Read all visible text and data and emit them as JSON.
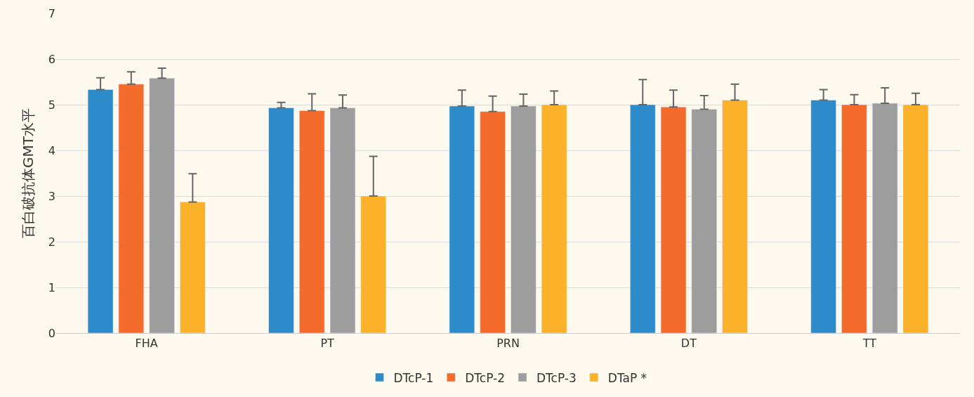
{
  "chart_data": {
    "type": "bar",
    "ylabel": "百白破抗体GMT水平",
    "categories": [
      "FHA",
      "PT",
      "PRN",
      "DT",
      "TT"
    ],
    "series": [
      {
        "name": "DTcP-1",
        "color": "#2e8bc9",
        "values": [
          5.33,
          4.93,
          4.97,
          5.0,
          5.1
        ],
        "errors": [
          [
            5.33,
            5.59
          ],
          [
            4.93,
            5.05
          ],
          [
            4.97,
            5.32
          ],
          [
            5.0,
            5.55
          ],
          [
            5.1,
            5.33
          ]
        ]
      },
      {
        "name": "DTcP-2",
        "color": "#f46b2c",
        "values": [
          5.45,
          4.87,
          4.85,
          4.95,
          5.0
        ],
        "errors": [
          [
            5.45,
            5.72
          ],
          [
            4.87,
            5.24
          ],
          [
            4.85,
            5.19
          ],
          [
            4.95,
            5.32
          ],
          [
            5.0,
            5.22
          ]
        ]
      },
      {
        "name": "DTcP-3",
        "color": "#9d9d9d",
        "values": [
          5.58,
          4.93,
          4.97,
          4.9,
          5.03
        ],
        "errors": [
          [
            5.58,
            5.8
          ],
          [
            4.93,
            5.21
          ],
          [
            4.97,
            5.23
          ],
          [
            4.9,
            5.2
          ],
          [
            5.03,
            5.37
          ]
        ]
      },
      {
        "name": "DTaP *",
        "color": "#fbb12a",
        "values": [
          2.87,
          3.0,
          5.0,
          5.1,
          5.0
        ],
        "errors": [
          [
            2.87,
            3.49
          ],
          [
            3.0,
            3.87
          ],
          [
            5.0,
            5.3
          ],
          [
            5.1,
            5.45
          ],
          [
            5.0,
            5.25
          ]
        ]
      }
    ],
    "ylim": [
      0,
      7
    ],
    "yticks": [
      0,
      1,
      2,
      3,
      4,
      5,
      6,
      7
    ],
    "grid": "y",
    "legend": "bottom"
  }
}
